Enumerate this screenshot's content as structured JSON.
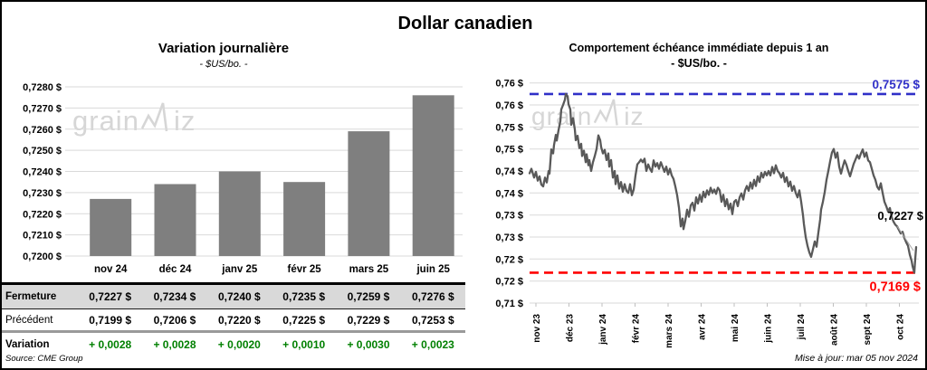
{
  "page": {
    "title": "Dollar canadien",
    "source": "Source: CME Group",
    "updated": "Mise à jour: mar 05 nov 2024",
    "watermark_pre": "grain",
    "watermark_post": "iz"
  },
  "table": {
    "columns": [
      "nov 24",
      "déc 24",
      "janv 25",
      "févr 25",
      "mars 25",
      "juin 25"
    ],
    "rows": [
      {
        "label": "Fermeture",
        "values": [
          "0,7227 $",
          "0,7234 $",
          "0,7240 $",
          "0,7235 $",
          "0,7259 $",
          "0,7276 $"
        ]
      },
      {
        "label": "Précédent",
        "values": [
          "0,7199 $",
          "0,7206 $",
          "0,7220 $",
          "0,7225 $",
          "0,7229 $",
          "0,7253 $"
        ]
      },
      {
        "label": "Variation",
        "values": [
          "+ 0,0028",
          "+ 0,0028",
          "+ 0,0020",
          "+ 0,0010",
          "+ 0,0030",
          "+ 0,0023"
        ],
        "value_color": "#008000"
      }
    ]
  },
  "chart_data": [
    {
      "type": "bar",
      "title": "Variation journalière",
      "subtitle": "- $US/bo. -",
      "categories": [
        "nov 24",
        "déc 24",
        "janv 25",
        "févr 25",
        "mars 25",
        "juin 25"
      ],
      "values": [
        0.7227,
        0.7234,
        0.724,
        0.7235,
        0.7259,
        0.7276
      ],
      "ylim": [
        0.72,
        0.728
      ],
      "ytick_values": [
        0.728,
        0.727,
        0.726,
        0.725,
        0.724,
        0.723,
        0.722,
        0.721,
        0.72
      ],
      "ytick_labels": [
        "0,7280 $",
        "0,7270 $",
        "0,7260 $",
        "0,7250 $",
        "0,7240 $",
        "0,7230 $",
        "0,7220 $",
        "0,7210 $",
        "0,7200 $"
      ],
      "grid": true,
      "bar_color": "#7f7f7f",
      "grid_color": "#d9d9d9"
    },
    {
      "type": "line",
      "title": "Comportement échéance immédiate depuis 1 an",
      "subtitle": "- $US/bo. -",
      "x_labels": [
        "nov 23",
        "déc 23",
        "janv 24",
        "févr 24",
        "mars 24",
        "avr 24",
        "mai 24",
        "juin 24",
        "juil 24",
        "août 24",
        "sept 24",
        "oct 24"
      ],
      "ylim": [
        0.71,
        0.76
      ],
      "ytick_values": [
        0.76,
        0.755,
        0.75,
        0.745,
        0.74,
        0.735,
        0.73,
        0.725,
        0.72,
        0.715,
        0.71
      ],
      "ytick_labels": [
        "0,76 $",
        "0,76 $",
        "0,75 $",
        "0,75 $",
        "0,74 $",
        "0,74 $",
        "0,73 $",
        "0,73 $",
        "0,72 $",
        "0,72 $",
        "0,71 $"
      ],
      "grid": true,
      "line_color": "#595959",
      "grid_color": "#d9d9d9",
      "resistance": {
        "value": 0.7575,
        "label": "0,7575 $",
        "color": "#3030c8"
      },
      "support": {
        "value": 0.7169,
        "label": "0,7169 $",
        "color": "#ff0000"
      },
      "last_point": {
        "value": 0.7227,
        "label": "0,7227 $"
      },
      "points": [
        [
          0,
          0.7395
        ],
        [
          2,
          0.7405
        ],
        [
          5,
          0.7385
        ],
        [
          7,
          0.7398
        ],
        [
          9,
          0.7378
        ],
        [
          11,
          0.7388
        ],
        [
          13,
          0.7369
        ],
        [
          15,
          0.7365
        ],
        [
          17,
          0.7385
        ],
        [
          19,
          0.7374
        ],
        [
          21,
          0.74
        ],
        [
          22,
          0.7394
        ],
        [
          24,
          0.7449
        ],
        [
          26,
          0.744
        ],
        [
          27,
          0.7459
        ],
        [
          29,
          0.7482
        ],
        [
          30,
          0.7469
        ],
        [
          32,
          0.7493
        ],
        [
          34,
          0.7513
        ],
        [
          35,
          0.754
        ],
        [
          37,
          0.755
        ],
        [
          39,
          0.7562
        ],
        [
          40,
          0.7575
        ],
        [
          42,
          0.757
        ],
        [
          43,
          0.7552
        ],
        [
          45,
          0.754
        ],
        [
          46,
          0.7505
        ],
        [
          48,
          0.752
        ],
        [
          50,
          0.7494
        ],
        [
          51,
          0.747
        ],
        [
          53,
          0.748
        ],
        [
          55,
          0.7452
        ],
        [
          57,
          0.7462
        ],
        [
          58,
          0.7434
        ],
        [
          60,
          0.7446
        ],
        [
          62,
          0.742
        ],
        [
          63,
          0.7438
        ],
        [
          65,
          0.7413
        ],
        [
          66,
          0.7425
        ],
        [
          68,
          0.74
        ],
        [
          70,
          0.742
        ],
        [
          72,
          0.7434
        ],
        [
          74,
          0.745
        ],
        [
          76,
          0.7481
        ],
        [
          78,
          0.747
        ],
        [
          79,
          0.7455
        ],
        [
          81,
          0.744
        ],
        [
          83,
          0.7448
        ],
        [
          85,
          0.7425
        ],
        [
          87,
          0.744
        ],
        [
          88,
          0.741
        ],
        [
          90,
          0.7425
        ],
        [
          92,
          0.7385
        ],
        [
          94,
          0.74
        ],
        [
          95,
          0.737
        ],
        [
          97,
          0.739
        ],
        [
          99,
          0.736
        ],
        [
          101,
          0.7375
        ],
        [
          103,
          0.7353
        ],
        [
          105,
          0.737
        ],
        [
          107,
          0.7355
        ],
        [
          109,
          0.735
        ],
        [
          111,
          0.737
        ],
        [
          113,
          0.7345
        ],
        [
          115,
          0.7358
        ],
        [
          117,
          0.739
        ],
        [
          119,
          0.7415
        ],
        [
          121,
          0.742
        ],
        [
          123,
          0.7426
        ],
        [
          125,
          0.742
        ],
        [
          127,
          0.7428
        ],
        [
          129,
          0.74
        ],
        [
          131,
          0.7415
        ],
        [
          133,
          0.7405
        ],
        [
          135,
          0.7398
        ],
        [
          137,
          0.7424
        ],
        [
          139,
          0.741
        ],
        [
          141,
          0.7418
        ],
        [
          143,
          0.7405
        ],
        [
          145,
          0.742
        ],
        [
          147,
          0.7409
        ],
        [
          149,
          0.7398
        ],
        [
          151,
          0.741
        ],
        [
          153,
          0.7392
        ],
        [
          155,
          0.7405
        ],
        [
          157,
          0.739
        ],
        [
          159,
          0.7382
        ],
        [
          161,
          0.7365
        ],
        [
          163,
          0.7345
        ],
        [
          165,
          0.7317
        ],
        [
          167,
          0.7274
        ],
        [
          169,
          0.7292
        ],
        [
          170,
          0.7268
        ],
        [
          172,
          0.7287
        ],
        [
          174,
          0.7312
        ],
        [
          176,
          0.7296
        ],
        [
          178,
          0.7322
        ],
        [
          180,
          0.7328
        ],
        [
          182,
          0.731
        ],
        [
          184,
          0.734
        ],
        [
          186,
          0.7326
        ],
        [
          188,
          0.7346
        ],
        [
          190,
          0.733
        ],
        [
          192,
          0.7353
        ],
        [
          194,
          0.734
        ],
        [
          196,
          0.7356
        ],
        [
          198,
          0.7346
        ],
        [
          200,
          0.7362
        ],
        [
          202,
          0.735
        ],
        [
          204,
          0.7358
        ],
        [
          206,
          0.7348
        ],
        [
          208,
          0.7362
        ],
        [
          210,
          0.7356
        ],
        [
          212,
          0.733
        ],
        [
          214,
          0.7346
        ],
        [
          216,
          0.732
        ],
        [
          218,
          0.7336
        ],
        [
          220,
          0.7313
        ],
        [
          222,
          0.7326
        ],
        [
          224,
          0.7302
        ],
        [
          226,
          0.733
        ],
        [
          228,
          0.7334
        ],
        [
          230,
          0.732
        ],
        [
          232,
          0.734
        ],
        [
          234,
          0.7349
        ],
        [
          236,
          0.7335
        ],
        [
          238,
          0.7356
        ],
        [
          240,
          0.7366
        ],
        [
          242,
          0.7355
        ],
        [
          244,
          0.7374
        ],
        [
          246,
          0.736
        ],
        [
          248,
          0.738
        ],
        [
          250,
          0.7366
        ],
        [
          252,
          0.7388
        ],
        [
          254,
          0.7375
        ],
        [
          256,
          0.7396
        ],
        [
          258,
          0.7385
        ],
        [
          260,
          0.7398
        ],
        [
          262,
          0.739
        ],
        [
          264,
          0.74
        ],
        [
          266,
          0.739
        ],
        [
          268,
          0.7409
        ],
        [
          270,
          0.7395
        ],
        [
          272,
          0.7413
        ],
        [
          274,
          0.74
        ],
        [
          276,
          0.7395
        ],
        [
          278,
          0.7385
        ],
        [
          280,
          0.7396
        ],
        [
          282,
          0.7375
        ],
        [
          284,
          0.7386
        ],
        [
          286,
          0.7365
        ],
        [
          288,
          0.7376
        ],
        [
          290,
          0.7355
        ],
        [
          292,
          0.7366
        ],
        [
          294,
          0.735
        ],
        [
          296,
          0.734
        ],
        [
          298,
          0.7356
        ],
        [
          300,
          0.733
        ],
        [
          302,
          0.73
        ],
        [
          303,
          0.728
        ],
        [
          305,
          0.725
        ],
        [
          307,
          0.723
        ],
        [
          309,
          0.7215
        ],
        [
          311,
          0.7205
        ],
        [
          313,
          0.7222
        ],
        [
          315,
          0.724
        ],
        [
          317,
          0.7228
        ],
        [
          319,
          0.726
        ],
        [
          321,
          0.729
        ],
        [
          322,
          0.7312
        ],
        [
          324,
          0.733
        ],
        [
          326,
          0.7352
        ],
        [
          328,
          0.738
        ],
        [
          330,
          0.74
        ],
        [
          332,
          0.7422
        ],
        [
          334,
          0.7442
        ],
        [
          336,
          0.745
        ],
        [
          338,
          0.743
        ],
        [
          340,
          0.7442
        ],
        [
          342,
          0.741
        ],
        [
          344,
          0.7394
        ],
        [
          346,
          0.741
        ],
        [
          348,
          0.7424
        ],
        [
          350,
          0.7414
        ],
        [
          352,
          0.74
        ],
        [
          354,
          0.7388
        ],
        [
          356,
          0.7402
        ],
        [
          358,
          0.7416
        ],
        [
          360,
          0.7426
        ],
        [
          362,
          0.7436
        ],
        [
          364,
          0.7428
        ],
        [
          366,
          0.744
        ],
        [
          368,
          0.7449
        ],
        [
          370,
          0.7432
        ],
        [
          372,
          0.7442
        ],
        [
          374,
          0.7424
        ],
        [
          376,
          0.742
        ],
        [
          378,
          0.7405
        ],
        [
          380,
          0.739
        ],
        [
          382,
          0.738
        ],
        [
          384,
          0.7364
        ],
        [
          386,
          0.7358
        ],
        [
          388,
          0.7372
        ],
        [
          390,
          0.735
        ],
        [
          392,
          0.733
        ],
        [
          394,
          0.732
        ],
        [
          396,
          0.7308
        ],
        [
          398,
          0.7316
        ],
        [
          400,
          0.7295
        ],
        [
          402,
          0.7285
        ],
        [
          404,
          0.7278
        ],
        [
          406,
          0.7274
        ],
        [
          408,
          0.7266
        ],
        [
          410,
          0.7258
        ],
        [
          412,
          0.7262
        ],
        [
          414,
          0.7248
        ],
        [
          416,
          0.7238
        ],
        [
          418,
          0.723
        ],
        [
          420,
          0.721
        ],
        [
          422,
          0.7196
        ],
        [
          423,
          0.7184
        ],
        [
          425,
          0.7169
        ],
        [
          426,
          0.72
        ],
        [
          427,
          0.7227
        ]
      ]
    }
  ]
}
